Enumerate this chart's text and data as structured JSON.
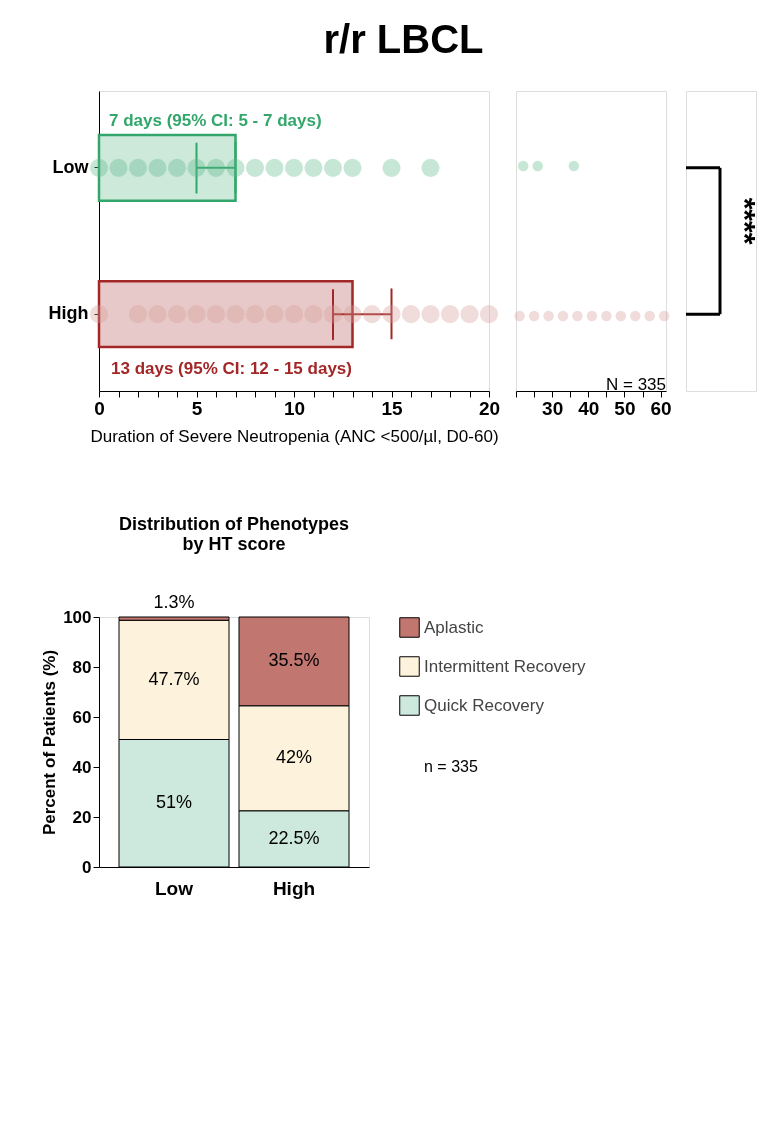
{
  "chart_data": [
    {
      "type": "bar",
      "orientation": "horizontal",
      "title": "r/r LBCL",
      "xlabel": "Duration of Severe Neutropenia (ANC <500/µl, D0-60)",
      "categories": [
        "Low",
        "High"
      ],
      "xlim": [
        0,
        20
      ],
      "xticks": [
        0,
        {
          "value": 1,
          "label": null
        },
        {
          "value": 2,
          "label": null
        },
        {
          "value": 3,
          "label": null
        },
        {
          "value": 4,
          "label": null
        },
        5,
        {
          "value": 6,
          "label": null
        },
        {
          "value": 7,
          "label": null
        },
        {
          "value": 8,
          "label": null
        },
        {
          "value": 9,
          "label": null
        },
        10,
        {
          "value": 11,
          "label": null
        },
        {
          "value": 12,
          "label": null
        },
        {
          "value": 13,
          "label": null
        },
        {
          "value": 14,
          "label": null
        },
        15,
        {
          "value": 16,
          "label": null
        },
        {
          "value": 17,
          "label": null
        },
        {
          "value": 18,
          "label": null
        },
        {
          "value": 19,
          "label": null
        },
        20
      ],
      "series": [
        {
          "type": "bar",
          "colors": [
            "#cce9da",
            "#e8c9c9"
          ],
          "values": [
            7,
            13
          ],
          "errors": [
            [
              5,
              7
            ],
            [
              12,
              15
            ]
          ]
        },
        {
          "type": "scatter",
          "color": "#5cb88a",
          "x": [
            "Low",
            "Low",
            "Low",
            "Low",
            "Low",
            "Low",
            "Low",
            "Low",
            "Low",
            "Low",
            "Low",
            "Low",
            "Low",
            "Low",
            "Low",
            "Low"
          ],
          "values": [
            0,
            1,
            2,
            3,
            4,
            5,
            6,
            7,
            8,
            9,
            10,
            11,
            12,
            13,
            15,
            17
          ]
        },
        {
          "type": "scatter",
          "color": "#d49a96",
          "x": [
            "High",
            "High",
            "High",
            "High",
            "High",
            "High",
            "High",
            "High",
            "High",
            "High",
            "High",
            "High",
            "High",
            "High",
            "High",
            "High",
            "High",
            "High",
            "High",
            "High"
          ],
          "values": [
            0,
            2,
            3,
            4,
            5,
            6,
            7,
            8,
            9,
            10,
            11,
            12,
            13,
            14,
            15,
            16,
            17,
            18,
            19,
            20
          ]
        }
      ],
      "annotations": [
        "7 days (95% CI: 5 - 7 days)",
        "13 days (95% CI: 12 - 15 days)"
      ]
    },
    {
      "type": "scatter",
      "orientation": "horizontal",
      "categories": [
        "Low",
        "High"
      ],
      "tick_labels": "x",
      "xlim": [
        20,
        61.5
      ],
      "xticks": [
        {
          "value": 20,
          "label": null
        },
        {
          "value": 25,
          "label": null
        },
        30,
        {
          "value": 35,
          "label": null
        },
        40,
        {
          "value": 45,
          "label": null
        },
        50,
        {
          "value": 55,
          "label": null
        },
        60
      ],
      "series": [
        {
          "color": "#5cb88a",
          "x": [
            "Low",
            "Low",
            "Low"
          ],
          "values": [
            22,
            26,
            36
          ]
        },
        {
          "color": "#d49a96",
          "x": [
            "High",
            "High",
            "High",
            "High",
            "High",
            "High",
            "High",
            "High",
            "High",
            "High",
            "High"
          ],
          "values": [
            21,
            25,
            29,
            33,
            37,
            41,
            45,
            49,
            53,
            57,
            61
          ]
        }
      ],
      "annotations": [
        "N = 335",
        "****"
      ]
    },
    {
      "type": "bar",
      "stacked": true,
      "title": "Distribution of Phenotypes\nby HT score",
      "ylabel": "Percent of Patients (%)",
      "categories": [
        "Low",
        "High"
      ],
      "ylim": [
        0,
        100
      ],
      "yticks": [
        0,
        20,
        40,
        60,
        80,
        100
      ],
      "legend": "right",
      "series": [
        {
          "name": "Quick Recovery",
          "color": "#cde9dd",
          "values": [
            51,
            22.5
          ],
          "value_labels": [
            "51%",
            "22.5%"
          ]
        },
        {
          "name": "Intermittent Recovery",
          "color": "#fdf3dc",
          "values": [
            47.7,
            42
          ],
          "value_labels": [
            "47.7%",
            "42%"
          ]
        },
        {
          "name": "Aplastic",
          "color": "#c27670",
          "values": [
            1.3,
            35.5
          ],
          "value_labels": [
            "1.3%",
            "35.5%"
          ]
        }
      ],
      "annotations": [
        "n = 335"
      ]
    }
  ]
}
